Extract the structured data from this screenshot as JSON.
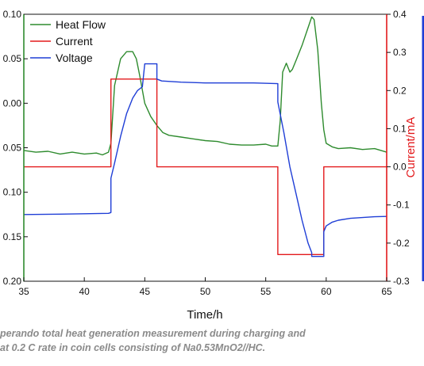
{
  "chart_data": {
    "type": "line",
    "xlabel": "Time/h",
    "ylabel_right": "Current/mA",
    "xlim": [
      35,
      65
    ],
    "x_ticks": [
      "35",
      "40",
      "45",
      "50",
      "55",
      "60",
      "65"
    ],
    "left_axis": {
      "ylim": [
        -0.2,
        0.1
      ],
      "ticks": [
        0.1,
        0.05,
        0.0,
        -0.05,
        -0.1,
        -0.15,
        -0.2
      ],
      "tick_labels": [
        "0.10",
        "0.05",
        "0.00",
        "0.05",
        "0.10",
        "0.15",
        "0.20"
      ],
      "color": "#2e8b2e"
    },
    "right_axis": {
      "ylim": [
        -0.3,
        0.4
      ],
      "ticks": [
        0.4,
        0.3,
        0.2,
        0.1,
        0.0,
        -0.1,
        -0.2,
        -0.3
      ],
      "tick_labels": [
        "0.4",
        "0.3",
        "0.2",
        "0.1",
        "0.0",
        "-0.1",
        "-0.2",
        "-0.3"
      ],
      "color": "#e31a1c"
    },
    "legend": {
      "position": "top-left",
      "entries": [
        "Heat Flow",
        "Current",
        "Voltage"
      ]
    },
    "series": [
      {
        "name": "Heat Flow",
        "color": "#2e8b2e",
        "axis": "left",
        "x": [
          35,
          36,
          37,
          38,
          39,
          40,
          41,
          41.5,
          42,
          42.2,
          42.5,
          43,
          43.5,
          44,
          44.3,
          44.6,
          45,
          45.5,
          46,
          46.5,
          47,
          48,
          49,
          50,
          51,
          52,
          53,
          54,
          55,
          55.5,
          56,
          56.2,
          56.4,
          56.7,
          57,
          57.2,
          57.5,
          58,
          58.5,
          58.8,
          59,
          59.3,
          59.6,
          59.8,
          60,
          60.5,
          61,
          62,
          63,
          64,
          65
        ],
        "y": [
          -0.053,
          -0.055,
          -0.054,
          -0.057,
          -0.055,
          -0.057,
          -0.056,
          -0.058,
          -0.055,
          -0.045,
          0.02,
          0.05,
          0.058,
          0.058,
          0.05,
          0.03,
          0.0,
          -0.015,
          -0.025,
          -0.033,
          -0.036,
          -0.038,
          -0.04,
          -0.042,
          -0.043,
          -0.046,
          -0.047,
          -0.047,
          -0.046,
          -0.048,
          -0.048,
          -0.02,
          0.035,
          0.045,
          0.035,
          0.038,
          0.048,
          0.065,
          0.085,
          0.097,
          0.094,
          0.06,
          0.0,
          -0.03,
          -0.045,
          -0.049,
          -0.051,
          -0.05,
          -0.052,
          -0.051,
          -0.055
        ]
      },
      {
        "name": "Current",
        "color": "#e31a1c",
        "axis": "right",
        "x": [
          35,
          42.2,
          42.2,
          46.0,
          46.0,
          56.0,
          56.0,
          59.8,
          59.8,
          65
        ],
        "y": [
          0,
          0,
          0.23,
          0.23,
          0,
          0,
          -0.23,
          -0.23,
          0,
          0
        ]
      },
      {
        "name": "Voltage",
        "color": "#1f3ed6",
        "axis": "right",
        "x": [
          35,
          38,
          40,
          42,
          42.2,
          42.2,
          42.5,
          43,
          43.5,
          44,
          44.4,
          44.8,
          45,
          46,
          46,
          46.4,
          48,
          50,
          52,
          54,
          56,
          56,
          56.5,
          57,
          57.5,
          58,
          58.5,
          58.8,
          58.8,
          59.8,
          59.8,
          60,
          60.5,
          61,
          62,
          63,
          64,
          65
        ],
        "y": [
          -0.125,
          -0.124,
          -0.123,
          -0.122,
          -0.12,
          -0.03,
          0.01,
          0.08,
          0.14,
          0.18,
          0.2,
          0.21,
          0.27,
          0.27,
          0.23,
          0.225,
          0.222,
          0.22,
          0.22,
          0.22,
          0.218,
          0.17,
          0.09,
          0.0,
          -0.07,
          -0.14,
          -0.2,
          -0.225,
          -0.235,
          -0.235,
          -0.17,
          -0.155,
          -0.145,
          -0.14,
          -0.135,
          -0.133,
          -0.131,
          -0.13
        ]
      }
    ]
  },
  "caption": {
    "line1": "perando total heat generation measurement during charging and",
    "line2": "at 0.2 C rate in coin cells consisting of Na0.53MnO2//HC."
  }
}
